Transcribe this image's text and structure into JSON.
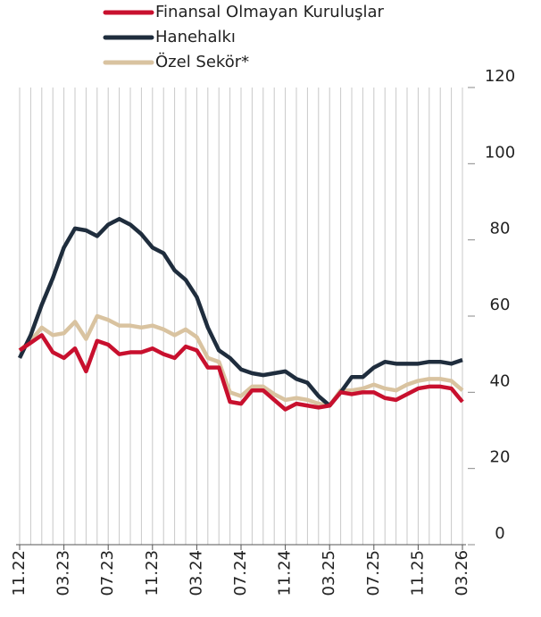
{
  "chart_data": {
    "type": "line",
    "categories": [
      "11.22",
      null,
      null,
      null,
      "03.23",
      null,
      null,
      null,
      "07.23",
      null,
      null,
      null,
      "11.23",
      null,
      null,
      null,
      "03.24",
      null,
      null,
      null,
      "07.24",
      null,
      null,
      null,
      "11.24",
      null,
      null,
      null,
      "03.25",
      null,
      null,
      null,
      "07.25",
      null,
      null,
      null,
      "11.25",
      null,
      null,
      null,
      "03.26"
    ],
    "series": [
      {
        "name": "Finansal Olmayan Kuruluşlar",
        "color": "#c8102e",
        "values": [
          51,
          53,
          55,
          50.5,
          49,
          51.5,
          45.5,
          53.5,
          52.5,
          50,
          50.5,
          50.5,
          51.5,
          50,
          49,
          52,
          51,
          46.5,
          46.5,
          37.5,
          37,
          40.5,
          40.5,
          38,
          35.5,
          37,
          36.5,
          36,
          36.5,
          40,
          39.5,
          40,
          40,
          38.5,
          38,
          39.5,
          41,
          41.5,
          41.5,
          41,
          37.5
        ]
      },
      {
        "name": "Hanehalkı",
        "color": "#1f2d3d",
        "values": [
          49,
          55,
          63,
          70,
          78,
          83,
          82.5,
          81,
          84,
          85.5,
          84,
          81.5,
          78,
          76.5,
          72,
          69.5,
          65,
          57,
          51,
          49,
          46,
          45,
          44.5,
          45,
          45.5,
          43.5,
          42.5,
          39,
          36.5,
          40,
          44,
          44,
          46.5,
          48,
          47.5,
          47.5,
          47.5,
          48,
          48,
          47.5,
          48.5
        ]
      },
      {
        "name": "Özel Sekör*",
        "color": "#d9c3a0",
        "values": [
          51,
          53.5,
          57,
          55,
          55.5,
          58.5,
          54,
          60,
          59,
          57.5,
          57.5,
          57,
          57.5,
          56.5,
          55,
          56.5,
          54.5,
          49,
          48,
          40,
          39,
          41.5,
          41.5,
          39.5,
          38,
          38.5,
          38,
          37,
          36.5,
          40.5,
          40.5,
          41,
          42,
          41,
          40.5,
          42,
          43,
          43.5,
          43.5,
          43,
          40.5
        ]
      }
    ],
    "ylim": [
      0,
      120
    ],
    "yticks": [
      0,
      20,
      40,
      60,
      80,
      100,
      120
    ],
    "grid": true,
    "legend": "top"
  }
}
